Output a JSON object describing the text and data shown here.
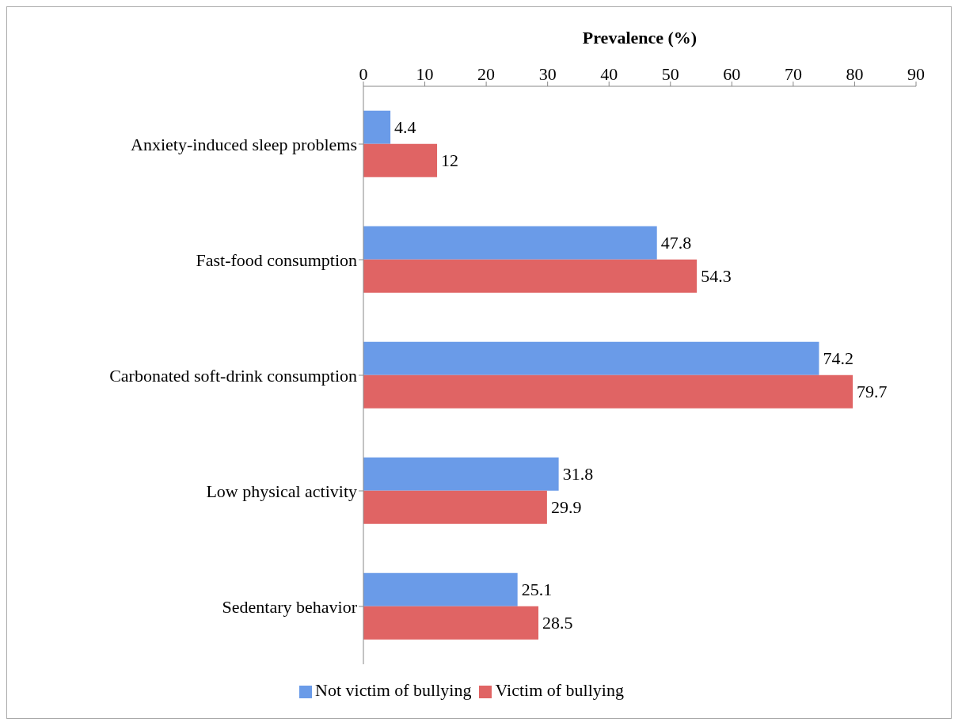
{
  "chart_data": {
    "type": "bar",
    "orientation": "horizontal",
    "xlabel": "Prevalence (%)",
    "categories": [
      "Anxiety-induced sleep problems",
      "Fast-food consumption",
      "Carbonated soft-drink consumption",
      "Low physical activity",
      "Sedentary behavior"
    ],
    "series": [
      {
        "name": "Not victim of bullying",
        "color": "#6a9be8",
        "values": [
          4.4,
          47.8,
          74.2,
          31.8,
          25.1
        ]
      },
      {
        "name": "Victim of bullying",
        "color": "#e06464",
        "values": [
          12,
          54.3,
          79.7,
          29.9,
          28.5
        ]
      }
    ],
    "xlim": [
      0,
      90
    ],
    "xticks": [
      0,
      10,
      20,
      30,
      40,
      50,
      60,
      70,
      80,
      90
    ],
    "data_labels": true,
    "grid": false,
    "legend": "bottom"
  }
}
